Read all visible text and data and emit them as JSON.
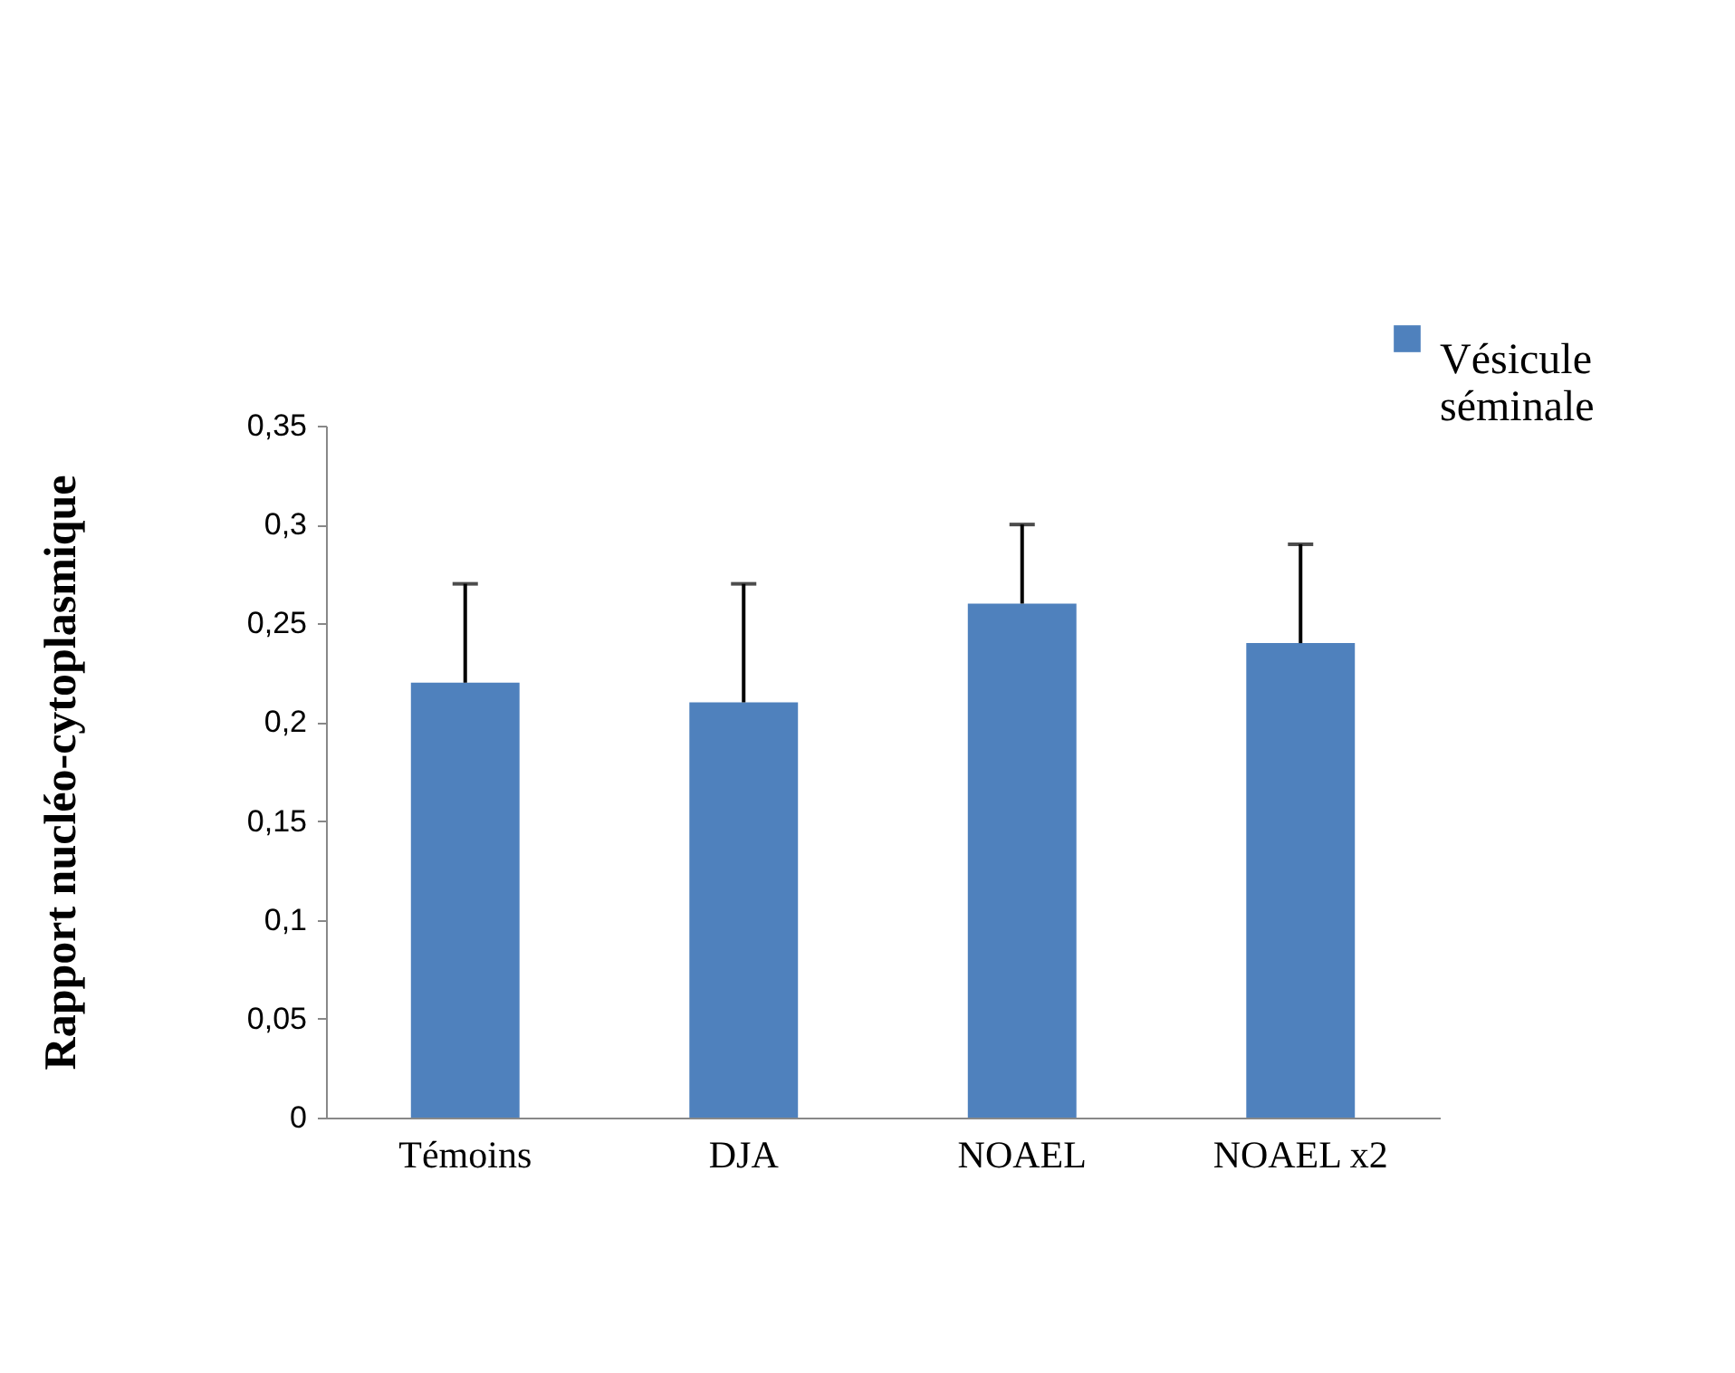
{
  "chart_data": {
    "type": "bar",
    "ylabel": "Rapport nucléo-cytoplasmique",
    "categories": [
      "Témoins",
      "DJA",
      "NOAEL",
      "NOAEL x2"
    ],
    "series": [
      {
        "name": "Vésicule séminale",
        "color": "#4f81bd",
        "values": [
          0.22,
          0.21,
          0.26,
          0.24
        ],
        "errors": [
          [
            0.22,
            0.27
          ],
          [
            0.21,
            0.27
          ],
          [
            0.26,
            0.3
          ],
          [
            0.24,
            0.29
          ]
        ]
      }
    ],
    "ylim": [
      0,
      0.35
    ],
    "yticks": [
      {
        "value": 0,
        "label": "0"
      },
      {
        "value": 0.05,
        "label": "0,05"
      },
      {
        "value": 0.1,
        "label": "0,1"
      },
      {
        "value": 0.15,
        "label": "0,15"
      },
      {
        "value": 0.2,
        "label": "0,2"
      },
      {
        "value": 0.25,
        "label": "0,25"
      },
      {
        "value": 0.3,
        "label": "0,3"
      },
      {
        "value": 0.35,
        "label": "0,35"
      }
    ],
    "grid": false,
    "legend": "top right"
  }
}
